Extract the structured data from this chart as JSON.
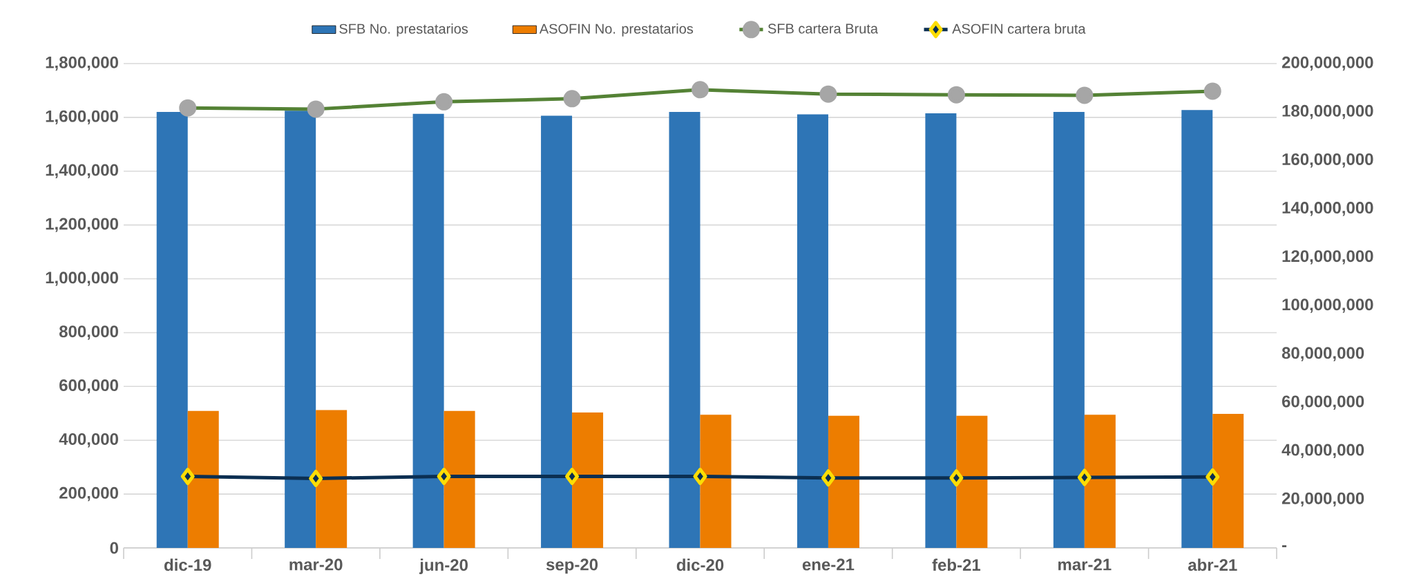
{
  "chart_data": {
    "type": "bar",
    "categories": [
      "dic-19",
      "mar-20",
      "jun-20",
      "sep-20",
      "dic-20",
      "ene-21",
      "feb-21",
      "mar-21",
      "abr-21"
    ],
    "series": [
      {
        "name": "SFB No. prestatarios",
        "color": "#2e75b6",
        "values": [
          1620000,
          1625000,
          1613000,
          1606000,
          1620000,
          1611000,
          1615000,
          1620000,
          1627000
        ]
      },
      {
        "name": "ASOFIN No. prestatarios",
        "color": "#ed7d00",
        "values": [
          509000,
          512000,
          509000,
          503000,
          495000,
          491000,
          491000,
          495000,
          498000
        ]
      },
      {
        "name": "SFB cartera Bruta",
        "type": "line",
        "axis": "y2",
        "marker": "circle",
        "color": "#548235",
        "values": [
          181700000,
          181200000,
          184200000,
          185500000,
          189200000,
          187400000,
          187100000,
          186900000,
          188600000
        ]
      },
      {
        "name": "ASOFIN cartera bruta",
        "type": "line",
        "axis": "y2",
        "marker": "diamond",
        "color": "#0b2f52",
        "values": [
          29500000,
          28700000,
          29500000,
          29500000,
          29500000,
          28900000,
          28900000,
          29100000,
          29300000
        ]
      }
    ],
    "ylim": [
      0,
      1800000
    ],
    "yticks": [
      {
        "value": 0,
        "label": "0"
      },
      {
        "value": 200000,
        "label": "200,000"
      },
      {
        "value": 400000,
        "label": "400,000"
      },
      {
        "value": 600000,
        "label": "600,000"
      },
      {
        "value": 800000,
        "label": "800,000"
      },
      {
        "value": 1000000,
        "label": "1,000,000"
      },
      {
        "value": 1200000,
        "label": "1,200,000"
      },
      {
        "value": 1400000,
        "label": "1,400,000"
      },
      {
        "value": 1600000,
        "label": "1,600,000"
      },
      {
        "value": 1800000,
        "label": "1,800,000"
      }
    ],
    "y2lim": [
      0,
      200000000
    ],
    "y2ticks": [
      {
        "value": 0,
        "label": "-"
      },
      {
        "value": 20000000,
        "label": "20,000,000"
      },
      {
        "value": 40000000,
        "label": "40,000,000"
      },
      {
        "value": 60000000,
        "label": "60,000,000"
      },
      {
        "value": 80000000,
        "label": "80,000,000"
      },
      {
        "value": 100000000,
        "label": "100,000,000"
      },
      {
        "value": 120000000,
        "label": "120,000,000"
      },
      {
        "value": 140000000,
        "label": "140,000,000"
      },
      {
        "value": 160000000,
        "label": "160,000,000"
      },
      {
        "value": 180000000,
        "label": "180,000,000"
      },
      {
        "value": 200000000,
        "label": "200,000,000"
      }
    ],
    "grid": "y",
    "legend": "top"
  }
}
